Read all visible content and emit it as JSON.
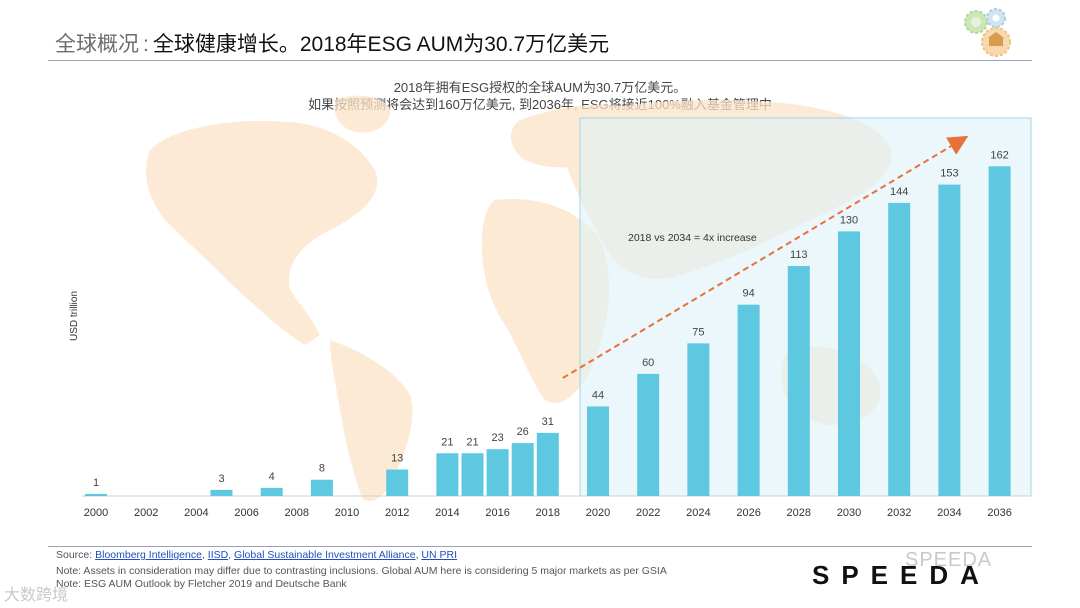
{
  "header": {
    "title_prefix": "全球概况",
    "title_separator": ":",
    "title_main": "全球健康增长。2018年ESG AUM为30.7万亿美元"
  },
  "subtitle": {
    "line1": "2018年拥有ESG授权的全球AUM为30.7万亿美元。",
    "line2": "如果按照预测将会达到160万亿美元, 到2036年, ESG将接近100%融入基金管理中"
  },
  "chart_data": {
    "type": "bar",
    "title": "",
    "ylabel": "USD trillion",
    "xlabel": "",
    "ylim": [
      0,
      170
    ],
    "annotation": "2018 vs 2034 = 4x increase",
    "bars": [
      {
        "x": 2000,
        "value": 1
      },
      {
        "x": 2005,
        "value": 3
      },
      {
        "x": 2007,
        "value": 4
      },
      {
        "x": 2009,
        "value": 8
      },
      {
        "x": 2012,
        "value": 13
      },
      {
        "x": 2014,
        "value": 21
      },
      {
        "x": 2015,
        "value": 21
      },
      {
        "x": 2016,
        "value": 23
      },
      {
        "x": 2017,
        "value": 26
      },
      {
        "x": 2018,
        "value": 31
      },
      {
        "x": 2020,
        "value": 44
      },
      {
        "x": 2022,
        "value": 60
      },
      {
        "x": 2024,
        "value": 75
      },
      {
        "x": 2026,
        "value": 94
      },
      {
        "x": 2028,
        "value": 113
      },
      {
        "x": 2030,
        "value": 130
      },
      {
        "x": 2032,
        "value": 144
      },
      {
        "x": 2034,
        "value": 153
      },
      {
        "x": 2036,
        "value": 162
      }
    ],
    "x_ticks": [
      "2000",
      "2002",
      "2004",
      "2006",
      "2008",
      "2010",
      "2012",
      "2014",
      "2016",
      "2018",
      "2020",
      "2022",
      "2024",
      "2026",
      "2028",
      "2030",
      "2032",
      "2034",
      "2036"
    ],
    "forecast_from": 2020,
    "colors": {
      "bar": "#5ec8e0",
      "forecast_bg": "#dff2f9",
      "forecast_border": "#9fd6ea",
      "arrow": "#e8703a",
      "map": "#fbe3c8"
    }
  },
  "footer": {
    "source_label": "Source:",
    "sources": [
      "Bloomberg Intelligence",
      "IISD",
      "Global Sustainable Investment Alliance",
      "UN PRI"
    ],
    "note": "Note: Assets in consideration may differ due to contrasting inclusions. Global AUM here is considering 5 major markets as per GSIA",
    "note2": "Note: ESG AUM Outlook by Fletcher 2019 and Deutsche Bank"
  },
  "brand": {
    "logo": "SPEEDA",
    "watermark_right": "SPEEDA",
    "watermark_left": "大数跨境"
  }
}
